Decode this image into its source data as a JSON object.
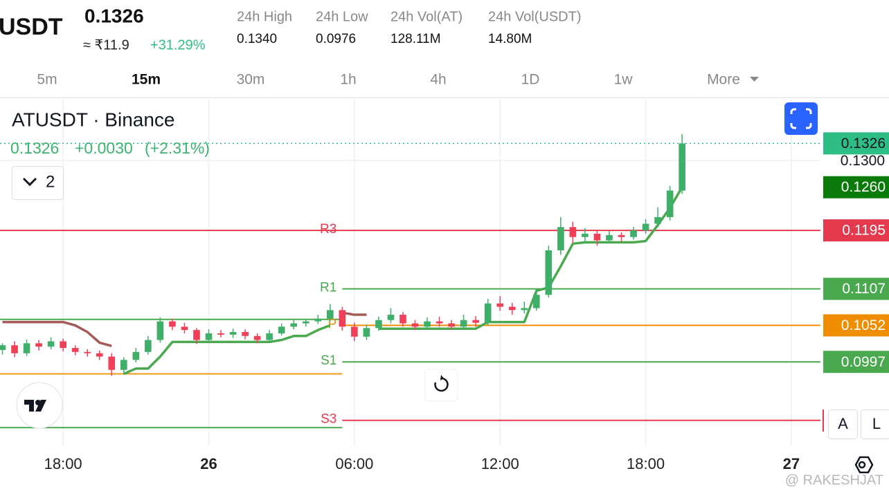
{
  "header": {
    "symbol": "USDT",
    "price": "0.1326",
    "fiat": "≈ ₹11.9",
    "change": "+31.29%",
    "stats": [
      {
        "label": "24h High",
        "value": "0.1340"
      },
      {
        "label": "24h Low",
        "value": "0.0976"
      },
      {
        "label": "24h Vol(AT)",
        "value": "128.11M"
      },
      {
        "label": "24h Vol(USDT)",
        "value": "14.80M"
      }
    ]
  },
  "tabs": {
    "items": [
      "5m",
      "15m",
      "30m",
      "1h",
      "4h",
      "1D",
      "1w",
      "More"
    ],
    "active": "15m"
  },
  "legend": {
    "title": "ATUSDT · Binance",
    "price": "0.1326",
    "change": "+0.0030",
    "percent": "(+2.31%)",
    "collapse": "2"
  },
  "buttons": {
    "auto": "A",
    "log": "L"
  },
  "watermark": "@ RAKESHJAT",
  "chart_data": {
    "type": "candlestick",
    "up_color": "#3fae68",
    "down_color": "#ef4058",
    "x": [
      15.5,
      16,
      16.5,
      17,
      17.5,
      18,
      18.5,
      19,
      19.5,
      20,
      20.5,
      21,
      21.5,
      22,
      22.5,
      23,
      23.5,
      24,
      24.5,
      25,
      25.5,
      26,
      26.5,
      27,
      27.5,
      28,
      28.5,
      29,
      29.5,
      30,
      30.5,
      31,
      31.5,
      32,
      32.5,
      33,
      33.5,
      34,
      34.5,
      35,
      35.5,
      36,
      36.5,
      37,
      37.5,
      38,
      38.5,
      39,
      39.5,
      40,
      40.5,
      41,
      41.5,
      42,
      42.5,
      43,
      43.5
    ],
    "ohlc": [
      [
        0.1015,
        0.1025,
        0.1008,
        0.1022
      ],
      [
        0.1022,
        0.1028,
        0.1004,
        0.101
      ],
      [
        0.101,
        0.1031,
        0.1006,
        0.1025
      ],
      [
        0.1025,
        0.103,
        0.1014,
        0.102
      ],
      [
        0.102,
        0.1034,
        0.1016,
        0.1028
      ],
      [
        0.1028,
        0.1032,
        0.1013,
        0.1018
      ],
      [
        0.1018,
        0.1022,
        0.1007,
        0.1012
      ],
      [
        0.1012,
        0.1016,
        0.1005,
        0.101
      ],
      [
        0.101,
        0.1014,
        0.1,
        0.1005
      ],
      [
        0.1005,
        0.101,
        0.0976,
        0.0985
      ],
      [
        0.0985,
        0.1004,
        0.0978,
        0.1
      ],
      [
        0.1,
        0.1018,
        0.0996,
        0.1012
      ],
      [
        0.1012,
        0.1036,
        0.1008,
        0.103
      ],
      [
        0.103,
        0.1064,
        0.1026,
        0.1058
      ],
      [
        0.1058,
        0.1062,
        0.1045,
        0.105
      ],
      [
        0.105,
        0.1056,
        0.104,
        0.1045
      ],
      [
        0.1045,
        0.1048,
        0.1024,
        0.103
      ],
      [
        0.103,
        0.1046,
        0.1027,
        0.104
      ],
      [
        0.104,
        0.1045,
        0.1034,
        0.1038
      ],
      [
        0.1038,
        0.1047,
        0.1033,
        0.1042
      ],
      [
        0.1042,
        0.1046,
        0.1031,
        0.1036
      ],
      [
        0.1036,
        0.104,
        0.1025,
        0.103
      ],
      [
        0.103,
        0.1045,
        0.1027,
        0.104
      ],
      [
        0.104,
        0.1055,
        0.1037,
        0.105
      ],
      [
        0.105,
        0.106,
        0.1046,
        0.1055
      ],
      [
        0.1055,
        0.1062,
        0.105,
        0.1058
      ],
      [
        0.1058,
        0.1068,
        0.1054,
        0.1062
      ],
      [
        0.1062,
        0.1084,
        0.1058,
        0.1075
      ],
      [
        0.1075,
        0.108,
        0.1044,
        0.105
      ],
      [
        0.105,
        0.1056,
        0.1028,
        0.1035
      ],
      [
        0.1035,
        0.1053,
        0.103,
        0.1048
      ],
      [
        0.1048,
        0.1065,
        0.1044,
        0.106
      ],
      [
        0.106,
        0.1078,
        0.1055,
        0.1068
      ],
      [
        0.1068,
        0.1072,
        0.105,
        0.1055
      ],
      [
        0.1055,
        0.106,
        0.1045,
        0.105
      ],
      [
        0.105,
        0.1064,
        0.1046,
        0.1058
      ],
      [
        0.1058,
        0.1065,
        0.105,
        0.1055
      ],
      [
        0.1055,
        0.106,
        0.1046,
        0.105
      ],
      [
        0.105,
        0.1068,
        0.1047,
        0.106
      ],
      [
        0.106,
        0.1066,
        0.105,
        0.1056
      ],
      [
        0.1056,
        0.1092,
        0.1052,
        0.1085
      ],
      [
        0.1085,
        0.1096,
        0.1074,
        0.108
      ],
      [
        0.108,
        0.1086,
        0.1068,
        0.1075
      ],
      [
        0.1075,
        0.1088,
        0.107,
        0.1078
      ],
      [
        0.1078,
        0.1106,
        0.1074,
        0.1098
      ],
      [
        0.1098,
        0.1172,
        0.1094,
        0.1165
      ],
      [
        0.1165,
        0.1215,
        0.1158,
        0.12
      ],
      [
        0.12,
        0.1208,
        0.1176,
        0.1185
      ],
      [
        0.1185,
        0.1198,
        0.1175,
        0.119
      ],
      [
        0.119,
        0.1195,
        0.1172,
        0.118
      ],
      [
        0.118,
        0.1194,
        0.1176,
        0.1188
      ],
      [
        0.1188,
        0.1192,
        0.1178,
        0.1185
      ],
      [
        0.1185,
        0.12,
        0.1181,
        0.1195
      ],
      [
        0.1195,
        0.1212,
        0.119,
        0.1205
      ],
      [
        0.1205,
        0.123,
        0.12,
        0.1215
      ],
      [
        0.1215,
        0.1262,
        0.121,
        0.1255
      ],
      [
        0.1255,
        0.134,
        0.125,
        0.1326
      ]
    ],
    "trend_up": [
      null,
      null,
      null,
      null,
      null,
      null,
      null,
      null,
      null,
      null,
      0.0979,
      0.0987,
      0.0987,
      0.1005,
      0.1027,
      0.1027,
      0.1027,
      0.1027,
      0.1027,
      0.1027,
      0.1027,
      0.1027,
      0.1027,
      0.103,
      0.1036,
      0.1036,
      0.1045,
      0.1052,
      null,
      null,
      null,
      0.1047,
      0.1047,
      0.1047,
      0.1047,
      0.1047,
      0.1047,
      0.1047,
      0.1047,
      0.1047,
      0.1057,
      0.1057,
      0.1057,
      0.1057,
      0.1104,
      0.1109,
      0.1141,
      0.1175,
      0.1177,
      0.1177,
      0.1177,
      0.1177,
      0.1177,
      0.1179,
      0.1203,
      0.1229,
      0.126
    ],
    "trend_down": [
      0.1057,
      0.1057,
      0.1057,
      0.1057,
      0.1057,
      0.1057,
      0.1052,
      0.1042,
      0.1026,
      0.1021,
      null,
      null,
      null,
      null,
      null,
      null,
      null,
      null,
      null,
      null,
      null,
      null,
      null,
      null,
      null,
      null,
      null,
      null,
      0.1071,
      0.1068,
      0.1068,
      null,
      null,
      null,
      null,
      null,
      null,
      null,
      null,
      null,
      null,
      null,
      null,
      null,
      null,
      null,
      null,
      null,
      null,
      null,
      null,
      null,
      null,
      null,
      null,
      null,
      null
    ],
    "trend_up_color": "#4aa84f",
    "trend_down_color": "#a45a55",
    "levels": [
      {
        "value": 0.1195,
        "color": "#e5394d",
        "to": 29.5
      },
      {
        "value": 0.1061,
        "color": "#4aa84f",
        "to": 29.5
      },
      {
        "value": 0.0979,
        "color": "#f09a1a",
        "to": 29.5
      },
      {
        "value": 0.0898,
        "color": "#4aa84f",
        "to": 29.5
      },
      {
        "label": "R3",
        "value": 0.1195,
        "color": "#e5394d",
        "from": 29.5,
        "badge": true
      },
      {
        "label": "R1",
        "value": 0.1107,
        "color": "#4aa84f",
        "from": 29.5,
        "badge": true
      },
      {
        "label": "P",
        "value": 0.1052,
        "color": "#f08c00",
        "from": 29.5,
        "badge": true
      },
      {
        "label": "S1",
        "value": 0.0997,
        "color": "#4aa84f",
        "from": 29.5,
        "badge": true
      },
      {
        "label": "S3",
        "value": 0.0909,
        "color": "#e5394d",
        "from": 29.5
      }
    ],
    "last_price": 0.1326,
    "last_price_color": "#2ebd85",
    "trend_badge": {
      "value": 0.126,
      "label": "0.1260",
      "color": "#0a7a0a"
    },
    "xlim": [
      15.4,
      49.2
    ],
    "ylim": [
      0.0891,
      0.1393
    ],
    "xticks": [
      {
        "value": 18,
        "label": "18:00"
      },
      {
        "value": 24,
        "label": "26",
        "bold": true
      },
      {
        "value": 30,
        "label": "06:00"
      },
      {
        "value": 36,
        "label": "12:00"
      },
      {
        "value": 42,
        "label": "18:00"
      },
      {
        "value": 48,
        "label": "27",
        "bold": true
      }
    ],
    "yticks": [
      {
        "value": 0.13,
        "label": "0.1300"
      }
    ],
    "grid": true
  }
}
